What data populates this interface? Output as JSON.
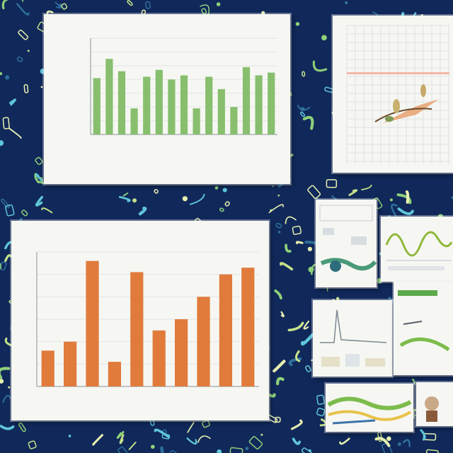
{
  "chart_data": [
    {
      "type": "bar",
      "title": "",
      "xlabel": "",
      "ylabel": "",
      "values": [
        41,
        55,
        46,
        19,
        42,
        47,
        40,
        43,
        19,
        42,
        33,
        20,
        49,
        43,
        45
      ],
      "ylim": [
        0,
        70
      ],
      "color": "#88bf6e"
    },
    {
      "type": "bar",
      "title": "",
      "xlabel": "",
      "ylabel": "",
      "values": [
        16,
        20,
        56,
        11,
        51,
        25,
        30,
        40,
        50,
        53
      ],
      "ylim": [
        0,
        60
      ],
      "color": "#e07b3c"
    }
  ],
  "colors": {
    "background": "#10285a",
    "pattern_green": "#8ed07a",
    "pattern_cyan": "#5fc6d8",
    "panel": "#f6f7f3"
  }
}
